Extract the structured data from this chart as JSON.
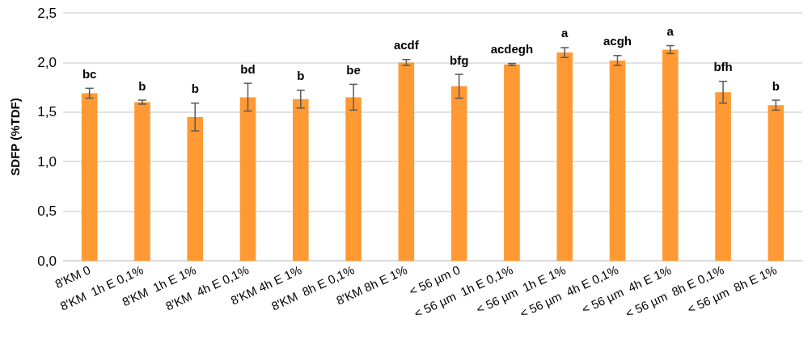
{
  "chart_data": {
    "type": "bar",
    "ylabel": "SDFP (%TDF)",
    "categories": [
      "8'KM 0",
      "8'KM  1h E 0,1%",
      "8'KM  1h E 1%",
      "8'KM  4h E 0,1%",
      "8'KM 4h E 1%",
      "8'KM  8h E 0,1%",
      "8'KM 8h E 1%",
      "< 56 µm 0",
      "< 56 µm  1h E 0,1%",
      "< 56 µm  1h E 1%",
      "< 56 µm  4h E 0,1%",
      "< 56 µm  4h E 1%",
      "< 56 µm  8h E 0,1%",
      "< 56 µm  8h E 1%"
    ],
    "values": [
      1.69,
      1.6,
      1.45,
      1.65,
      1.63,
      1.65,
      2.0,
      1.76,
      1.98,
      2.1,
      2.02,
      2.13,
      1.7,
      1.57
    ],
    "errors": [
      0.05,
      0.02,
      0.14,
      0.14,
      0.09,
      0.13,
      0.03,
      0.12,
      0.01,
      0.05,
      0.05,
      0.04,
      0.11,
      0.05
    ],
    "color": "#ff9933",
    "ylim": [
      0,
      2.5
    ],
    "yticks": [
      {
        "value": 0,
        "label": "0,0"
      },
      {
        "value": 0.5,
        "label": "0,5"
      },
      {
        "value": 1,
        "label": "1,0"
      },
      {
        "value": 1.5,
        "label": "1,5"
      },
      {
        "value": 2,
        "label": "2,0"
      },
      {
        "value": 2.5,
        "label": "2,5"
      }
    ],
    "grid": "y",
    "annotations": [
      {
        "text": "bc",
        "x": "8'KM 0",
        "y": 1.74
      },
      {
        "text": "b",
        "x": "8'KM  1h E 0,1%",
        "y": 1.62
      },
      {
        "text": "b",
        "x": "8'KM  1h E 1%",
        "y": 1.59
      },
      {
        "text": "bd",
        "x": "8'KM  4h E 0,1%",
        "y": 1.79
      },
      {
        "text": "b",
        "x": "8'KM 4h E 1%",
        "y": 1.72
      },
      {
        "text": "be",
        "x": "8'KM  8h E 0,1%",
        "y": 1.78
      },
      {
        "text": "acdf",
        "x": "8'KM 8h E 1%",
        "y": 2.03
      },
      {
        "text": "bfg",
        "x": "< 56 µm 0",
        "y": 1.88
      },
      {
        "text": "acdegh",
        "x": "< 56 µm  1h E 0,1%",
        "y": 1.99
      },
      {
        "text": "a",
        "x": "< 56 µm  1h E 1%",
        "y": 2.15
      },
      {
        "text": "acgh",
        "x": "< 56 µm  4h E 0,1%",
        "y": 2.07
      },
      {
        "text": "a",
        "x": "< 56 µm  4h E 1%",
        "y": 2.17
      },
      {
        "text": "bfh",
        "x": "< 56 µm  8h E 0,1%",
        "y": 1.81
      },
      {
        "text": "b",
        "x": "< 56 µm  8h E 1%",
        "y": 1.62
      }
    ]
  }
}
